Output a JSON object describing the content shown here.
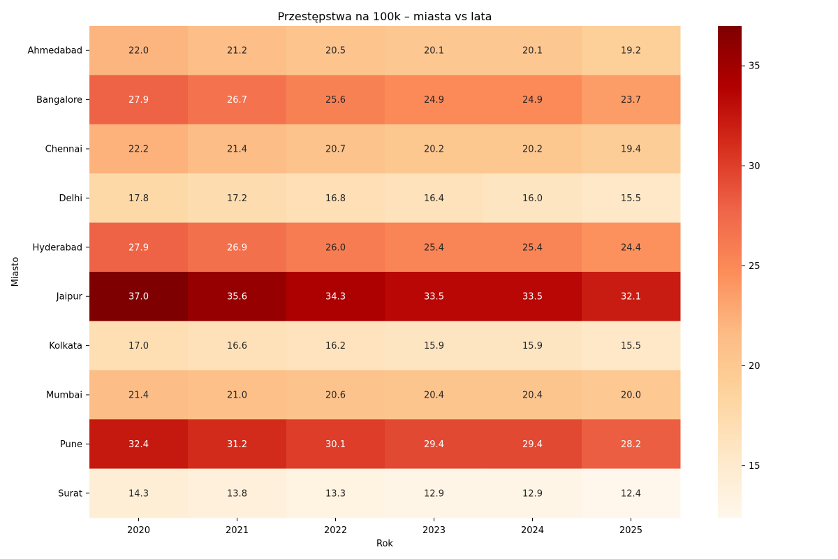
{
  "chart_data": {
    "type": "heatmap",
    "title": "Przestępstwa na 100k – miasta vs lata",
    "xlabel": "Rok",
    "ylabel": "Miasto",
    "x": [
      "2020",
      "2021",
      "2022",
      "2023",
      "2024",
      "2025"
    ],
    "y": [
      "Ahmedabad",
      "Bangalore",
      "Chennai",
      "Delhi",
      "Hyderabad",
      "Jaipur",
      "Kolkata",
      "Mumbai",
      "Pune",
      "Surat"
    ],
    "values": [
      [
        22.0,
        21.2,
        20.5,
        20.1,
        20.1,
        19.2
      ],
      [
        27.9,
        26.7,
        25.6,
        24.9,
        24.9,
        23.7
      ],
      [
        22.2,
        21.4,
        20.7,
        20.2,
        20.2,
        19.4
      ],
      [
        17.8,
        17.2,
        16.8,
        16.4,
        16.0,
        15.5
      ],
      [
        27.9,
        26.9,
        26.0,
        25.4,
        25.4,
        24.4
      ],
      [
        37.0,
        35.6,
        34.3,
        33.5,
        33.5,
        32.1
      ],
      [
        17.0,
        16.6,
        16.2,
        15.9,
        15.9,
        15.5
      ],
      [
        21.4,
        21.0,
        20.6,
        20.4,
        20.4,
        20.0
      ],
      [
        32.4,
        31.2,
        30.1,
        29.4,
        29.4,
        28.2
      ],
      [
        14.3,
        13.8,
        13.3,
        12.9,
        12.9,
        12.4
      ]
    ],
    "value_format": "1 decimal",
    "colormap": "OrRd",
    "colorbar": {
      "range": [
        12.4,
        37.0
      ],
      "ticks": [
        15,
        20,
        25,
        30,
        35
      ]
    },
    "grid": false,
    "legend": "colorbar-right"
  }
}
